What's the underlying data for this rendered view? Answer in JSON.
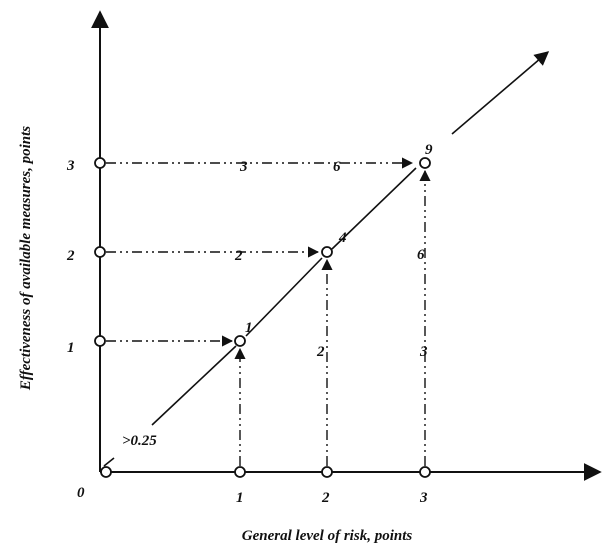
{
  "axes": {
    "x_title": "General level of risk, points",
    "y_title": "Effectiveness of available measures, points",
    "origin_label": "0",
    "x_ticks": [
      "1",
      "2",
      "3"
    ],
    "y_ticks": [
      "1",
      "2",
      "3"
    ]
  },
  "points": [
    {
      "label": "1"
    },
    {
      "label": "4"
    },
    {
      "label": "9"
    }
  ],
  "horizontal_path_labels": {
    "row2": [
      "2"
    ],
    "row3": [
      "3",
      "6"
    ]
  },
  "vertical_path_labels": {
    "col2": [
      "2"
    ],
    "col3": [
      "6",
      "3"
    ]
  },
  "annotation": ">0.25"
}
